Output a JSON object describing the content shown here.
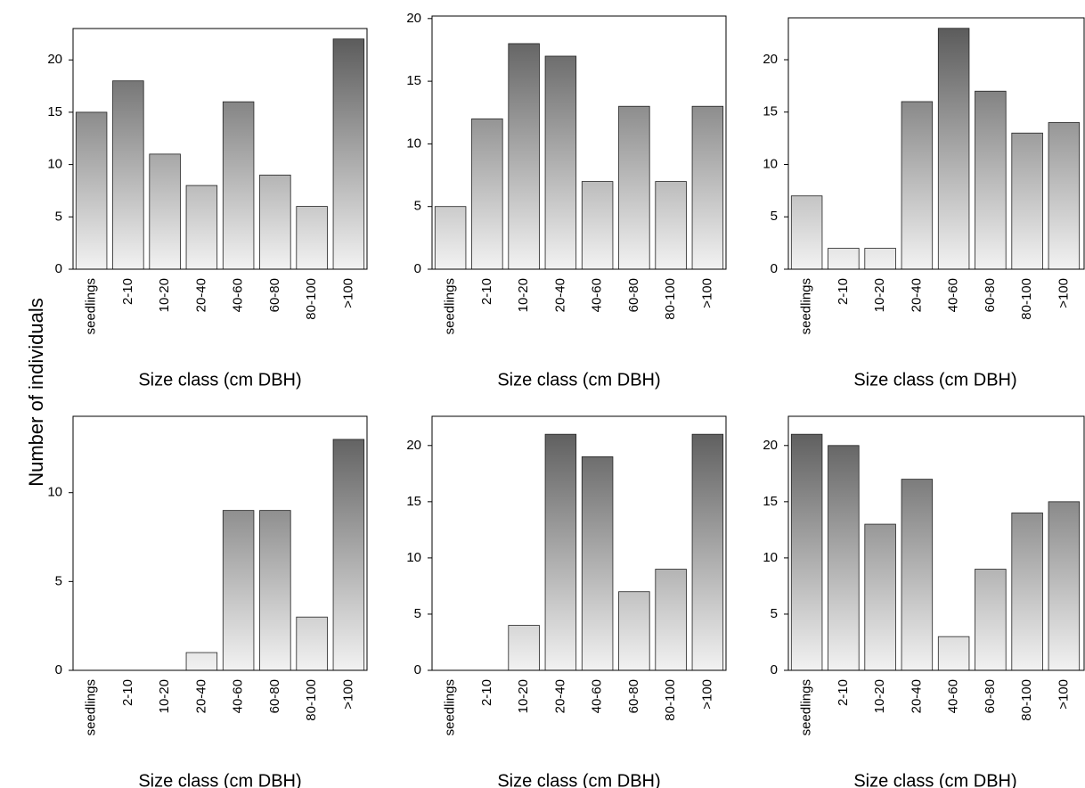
{
  "ylabel": "Number of individuals",
  "chart_data": [
    {
      "type": "bar",
      "xlabel": "Size class (cm DBH)",
      "categories": [
        "seedlings",
        "2-10",
        "10-20",
        "20-40",
        "40-60",
        "60-80",
        "80-100",
        ">100"
      ],
      "values": [
        15,
        18,
        11,
        8,
        16,
        9,
        6,
        22
      ],
      "ylim": [
        0,
        23
      ],
      "yticks": [
        0,
        5,
        10,
        15,
        20
      ],
      "gradient": [
        "#555555",
        "#f2f2f2"
      ]
    },
    {
      "type": "bar",
      "xlabel": "Size class (cm DBH)",
      "categories": [
        "seedlings",
        "2-10",
        "10-20",
        "20-40",
        "40-60",
        "60-80",
        "80-100",
        ">100"
      ],
      "values": [
        5,
        12,
        18,
        17,
        7,
        13,
        7,
        13
      ],
      "ylim": [
        0,
        20.2
      ],
      "yticks": [
        0,
        5,
        10,
        15,
        20
      ],
      "gradient": [
        "#555555",
        "#f2f2f2"
      ]
    },
    {
      "type": "bar",
      "xlabel": "Size class (cm DBH)",
      "categories": [
        "seedlings",
        "2-10",
        "10-20",
        "20-40",
        "40-60",
        "60-80",
        "80-100",
        ">100"
      ],
      "values": [
        7,
        2,
        2,
        16,
        23,
        17,
        13,
        14
      ],
      "ylim": [
        0,
        24
      ],
      "yticks": [
        0,
        5,
        10,
        15,
        20
      ],
      "gradient": [
        "#555555",
        "#f2f2f2"
      ]
    },
    {
      "type": "bar",
      "xlabel": "Size class (cm DBH)",
      "categories": [
        "seedlings",
        "2-10",
        "10-20",
        "20-40",
        "40-60",
        "60-80",
        "80-100",
        ">100"
      ],
      "values": [
        0,
        0,
        0,
        1,
        9,
        9,
        3,
        13
      ],
      "ylim": [
        0,
        14.3
      ],
      "yticks": [
        0,
        5,
        10
      ],
      "gradient": [
        "#555555",
        "#f2f2f2"
      ]
    },
    {
      "type": "bar",
      "xlabel": "Size class (cm DBH)",
      "categories": [
        "seedlings",
        "2-10",
        "10-20",
        "20-40",
        "40-60",
        "60-80",
        "80-100",
        ">100"
      ],
      "values": [
        0,
        0,
        4,
        21,
        19,
        7,
        9,
        21
      ],
      "ylim": [
        0,
        22.6
      ],
      "yticks": [
        0,
        5,
        10,
        15,
        20
      ],
      "gradient": [
        "#555555",
        "#f2f2f2"
      ]
    },
    {
      "type": "bar",
      "xlabel": "Size class (cm DBH)",
      "categories": [
        "seedlings",
        "2-10",
        "10-20",
        "20-40",
        "40-60",
        "60-80",
        "80-100",
        ">100"
      ],
      "values": [
        21,
        20,
        13,
        17,
        3,
        9,
        14,
        15
      ],
      "ylim": [
        0,
        22.6
      ],
      "yticks": [
        0,
        5,
        10,
        15,
        20
      ],
      "gradient": [
        "#555555",
        "#f2f2f2"
      ]
    }
  ]
}
